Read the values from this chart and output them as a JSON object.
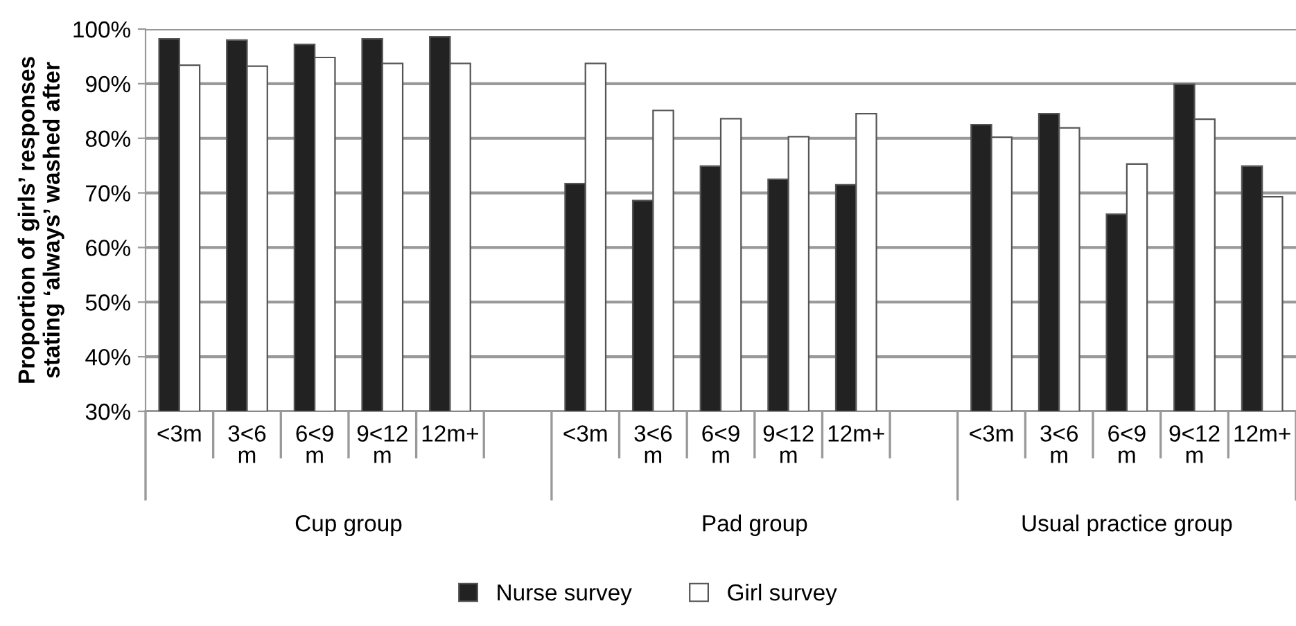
{
  "chart_data": {
    "type": "bar",
    "ylabel": "Proportion of girls’ responses\nstating ‘always’ washed after",
    "categories": [
      "<3m",
      "3<6\nm",
      "6<9\nm",
      "9<12\nm",
      "12m+",
      null,
      "<3m",
      "3<6\nm",
      "6<9\nm",
      "9<12\nm",
      "12m+",
      null,
      "<3m",
      "3<6\nm",
      "6<9\nm",
      "9<12\nm",
      "12m+"
    ],
    "series": [
      {
        "name": "Nurse survey",
        "color": "#222222",
        "values": [
          98.2,
          98.0,
          97.2,
          98.2,
          98.6,
          null,
          71.7,
          68.6,
          74.9,
          72.5,
          71.5,
          null,
          82.5,
          84.5,
          66.1,
          89.9,
          74.9
        ]
      },
      {
        "name": "Girl survey",
        "color": "#ffffff",
        "values": [
          93.4,
          93.2,
          94.8,
          93.7,
          93.7,
          null,
          93.7,
          85.1,
          83.6,
          80.3,
          84.5,
          null,
          80.2,
          81.9,
          75.3,
          83.5,
          69.3
        ]
      }
    ],
    "annotations": [
      "Cup group",
      "Pad group",
      "Usual practice group"
    ],
    "ylim": [
      30,
      100
    ],
    "yticks": [
      {
        "value": 30,
        "label": "30%"
      },
      {
        "value": 40,
        "label": "40%"
      },
      {
        "value": 50,
        "label": "50%"
      },
      {
        "value": 60,
        "label": "60%"
      },
      {
        "value": 70,
        "label": "70%"
      },
      {
        "value": 80,
        "label": "80%"
      },
      {
        "value": 90,
        "label": "90%"
      },
      {
        "value": 100,
        "label": "100%"
      }
    ],
    "grid": "y",
    "legend": "bottom"
  }
}
